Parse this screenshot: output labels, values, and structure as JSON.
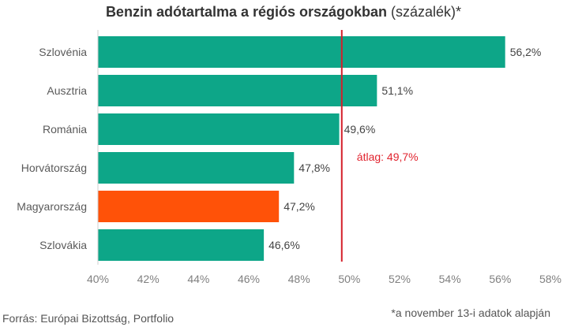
{
  "chart_data": {
    "type": "bar",
    "orientation": "horizontal",
    "title": "Benzin adótartalma a régiós országokban",
    "title_suffix": " (százalék)*",
    "categories": [
      "Szlovénia",
      "Ausztria",
      "Románia",
      "Horvátország",
      "Magyarország",
      "Szlovákia"
    ],
    "values": [
      56.2,
      51.1,
      49.6,
      47.8,
      47.2,
      46.6
    ],
    "value_labels": [
      "56,2%",
      "51,1%",
      "49,6%",
      "47,8%",
      "47,2%",
      "46,6%"
    ],
    "highlight_category": "Magyarország",
    "xlim": [
      40,
      58
    ],
    "x_ticks": [
      40,
      42,
      44,
      46,
      48,
      50,
      52,
      54,
      56,
      58
    ],
    "x_tick_labels": [
      "40%",
      "42%",
      "44%",
      "46%",
      "48%",
      "50%",
      "52%",
      "54%",
      "56%",
      "58%"
    ],
    "reference_line": {
      "value": 49.7,
      "label": "átlag: 49,7%"
    },
    "grid": false,
    "legend": "none",
    "colors": {
      "bar": "#0da688",
      "highlight": "#ff5208",
      "reference_line": "#d41f2a",
      "reference_label": "#e1242f",
      "text": "#444444",
      "axis_text": "#808080"
    }
  },
  "footer": {
    "source": "Forrás: Európai Bizottság, Portfolio",
    "footnote": "*a november 13-i adatok alapján"
  }
}
